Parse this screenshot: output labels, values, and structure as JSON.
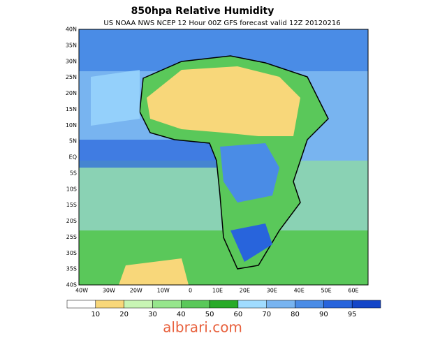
{
  "header": {
    "title": "850hpa Relative Humidity",
    "subtitle": "US NOAA NWS NCEP 12 Hour 00Z GFS forecast valid 12Z 20120216"
  },
  "map": {
    "lat_labels": [
      "40N",
      "35N",
      "30N",
      "25N",
      "20N",
      "15N",
      "10N",
      "5N",
      "EQ",
      "5S",
      "10S",
      "15S",
      "20S",
      "25S",
      "30S",
      "35S",
      "40S"
    ],
    "lon_labels": [
      "40W",
      "30W",
      "20W",
      "10W",
      "0",
      "10E",
      "20E",
      "30E",
      "40E",
      "50E",
      "60E"
    ]
  },
  "colorbar": {
    "colors": [
      "#ffffff",
      "#f8d77a",
      "#c8f5b4",
      "#96e68c",
      "#5ac85a",
      "#28aa28",
      "#a0dcff",
      "#78b4f0",
      "#4a8ce6",
      "#2864dc",
      "#1446c8"
    ],
    "labels": [
      "10",
      "20",
      "30",
      "40",
      "50",
      "60",
      "70",
      "80",
      "90",
      "95"
    ]
  },
  "footer": {
    "watermark": "albrari.com"
  }
}
